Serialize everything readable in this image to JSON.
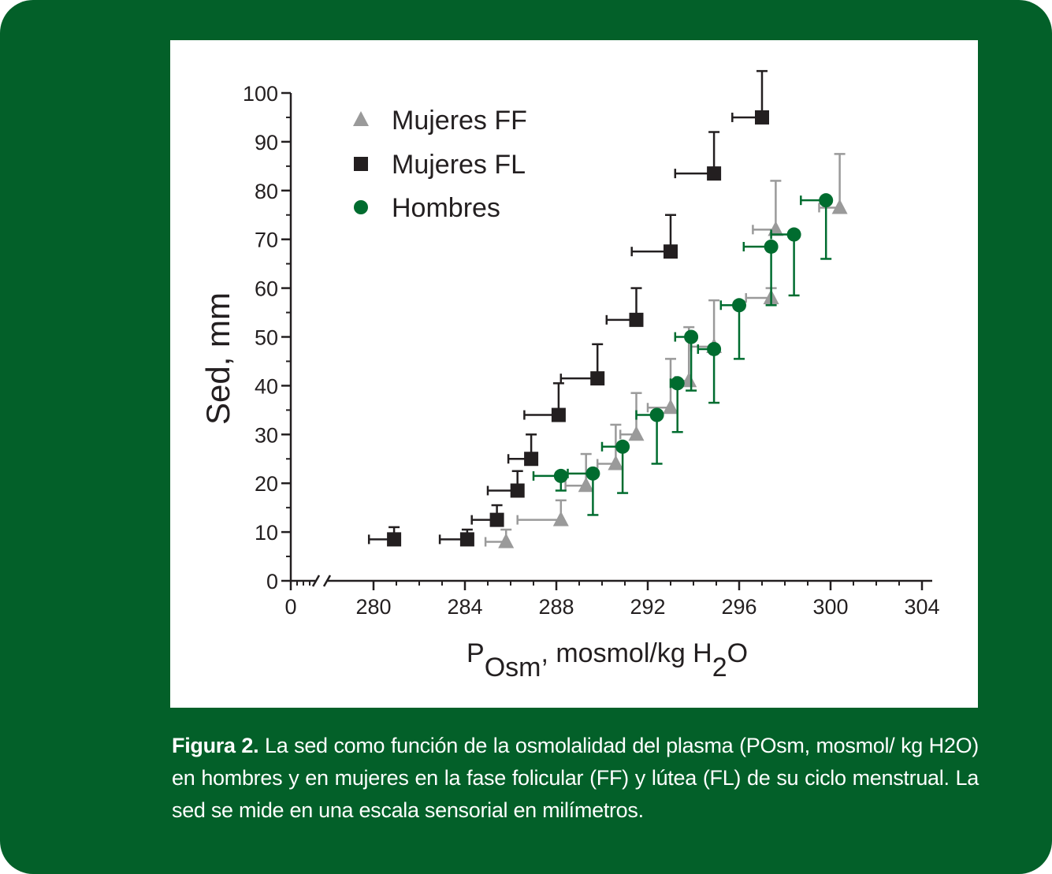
{
  "colors": {
    "background": "#036029",
    "panel": "#ffffff",
    "ink": "#231f20",
    "hombres": "#006c2f",
    "mujeres_ff": "#9a9a9a",
    "mujeres_fl": "#231f20"
  },
  "caption": {
    "lead": "Figura 2.",
    "text": " La sed como función de la osmolalidad del plasma (POsm, mosmol/ kg H2O) en hombres y en mujeres en la fase folicular (FF) y lútea (FL) de su ciclo menstrual. La sed se mide en una escala sensorial en milímetros."
  },
  "chart_data": {
    "type": "scatter",
    "ylabel": "Sed, mm",
    "xlabel": {
      "p": "P",
      "sub": "Osm",
      "rest": ", mosmol/kg H",
      "sub2": "2",
      "end": "O"
    },
    "x_ticks": [
      "0",
      "280",
      "284",
      "288",
      "292",
      "296",
      "300",
      "304"
    ],
    "y_ticks": [
      "0",
      "10",
      "20",
      "30",
      "40",
      "50",
      "60",
      "70",
      "80",
      "90",
      "100"
    ],
    "xlim": [
      277,
      304
    ],
    "x_axis_break": true,
    "ylim": [
      0,
      100
    ],
    "legend_position": "top-left",
    "series": [
      {
        "name": "Mujeres FF",
        "marker": "triangle",
        "color": "#9a9a9a",
        "points": [
          {
            "x": 285.8,
            "y": 8,
            "xerr": 0.9,
            "yerr": 2.5
          },
          {
            "x": 288.2,
            "y": 12.5,
            "xerr": 1.9,
            "yerr": 4
          },
          {
            "x": 289.3,
            "y": 19.5,
            "xerr": 0.9,
            "yerr": 6.5
          },
          {
            "x": 290.6,
            "y": 24,
            "xerr": 0.8,
            "yerr": 8
          },
          {
            "x": 291.5,
            "y": 30,
            "xerr": 0.7,
            "yerr": 8.5
          },
          {
            "x": 293.0,
            "y": 35.5,
            "xerr": 1.0,
            "yerr": 10
          },
          {
            "x": 293.8,
            "y": 41,
            "xerr": 0.6,
            "yerr": 11
          },
          {
            "x": 294.9,
            "y": 48,
            "xerr": 1.0,
            "yerr": 9.5
          },
          {
            "x": 297.4,
            "y": 58,
            "xerr": 1.1,
            "yerr": 2
          },
          {
            "x": 297.6,
            "y": 72,
            "xerr": 1.0,
            "yerr": 10
          },
          {
            "x": 300.4,
            "y": 76.5,
            "xerr": 0.9,
            "yerr": 11
          }
        ]
      },
      {
        "name": "Mujeres FL",
        "marker": "square",
        "color": "#231f20",
        "points": [
          {
            "x": 280.9,
            "y": 8.5,
            "xerr": 1.1,
            "yerr": 2.5
          },
          {
            "x": 284.1,
            "y": 8.5,
            "xerr": 1.2,
            "yerr": 2
          },
          {
            "x": 285.4,
            "y": 12.5,
            "xerr": 1.1,
            "yerr": 3
          },
          {
            "x": 286.3,
            "y": 18.5,
            "xerr": 1.3,
            "yerr": 4
          },
          {
            "x": 286.9,
            "y": 25,
            "xerr": 1.0,
            "yerr": 5
          },
          {
            "x": 288.1,
            "y": 34,
            "xerr": 1.5,
            "yerr": 6.5
          },
          {
            "x": 289.8,
            "y": 41.5,
            "xerr": 1.6,
            "yerr": 7
          },
          {
            "x": 291.5,
            "y": 53.5,
            "xerr": 1.3,
            "yerr": 6.5
          },
          {
            "x": 293.0,
            "y": 67.5,
            "xerr": 1.7,
            "yerr": 7.5
          },
          {
            "x": 294.9,
            "y": 83.5,
            "xerr": 1.7,
            "yerr": 8.5
          },
          {
            "x": 297.0,
            "y": 95,
            "xerr": 1.3,
            "yerr": 9.5
          }
        ]
      },
      {
        "name": "Hombres",
        "marker": "circle",
        "color": "#006c2f",
        "points": [
          {
            "x": 288.2,
            "y": 21.5,
            "xerr": 1.2,
            "yerr": 3
          },
          {
            "x": 289.6,
            "y": 22,
            "xerr": 1.1,
            "yerr": 8.5
          },
          {
            "x": 290.9,
            "y": 27.5,
            "xerr": 0.9,
            "yerr": 9.5
          },
          {
            "x": 292.4,
            "y": 34,
            "xerr": 0.9,
            "yerr": 10
          },
          {
            "x": 293.3,
            "y": 40.5,
            "xerr": 0.3,
            "yerr": 10
          },
          {
            "x": 293.9,
            "y": 50,
            "xerr": 0.7,
            "yerr": 11
          },
          {
            "x": 294.9,
            "y": 47.5,
            "xerr": 0.7,
            "yerr": 11
          },
          {
            "x": 296.0,
            "y": 56.5,
            "xerr": 0.8,
            "yerr": 11
          },
          {
            "x": 297.4,
            "y": 68.5,
            "xerr": 1.2,
            "yerr": 12
          },
          {
            "x": 298.4,
            "y": 71,
            "xerr": 1.0,
            "yerr": 12.5
          },
          {
            "x": 299.8,
            "y": 78,
            "xerr": 1.1,
            "yerr": 12
          }
        ]
      }
    ]
  }
}
